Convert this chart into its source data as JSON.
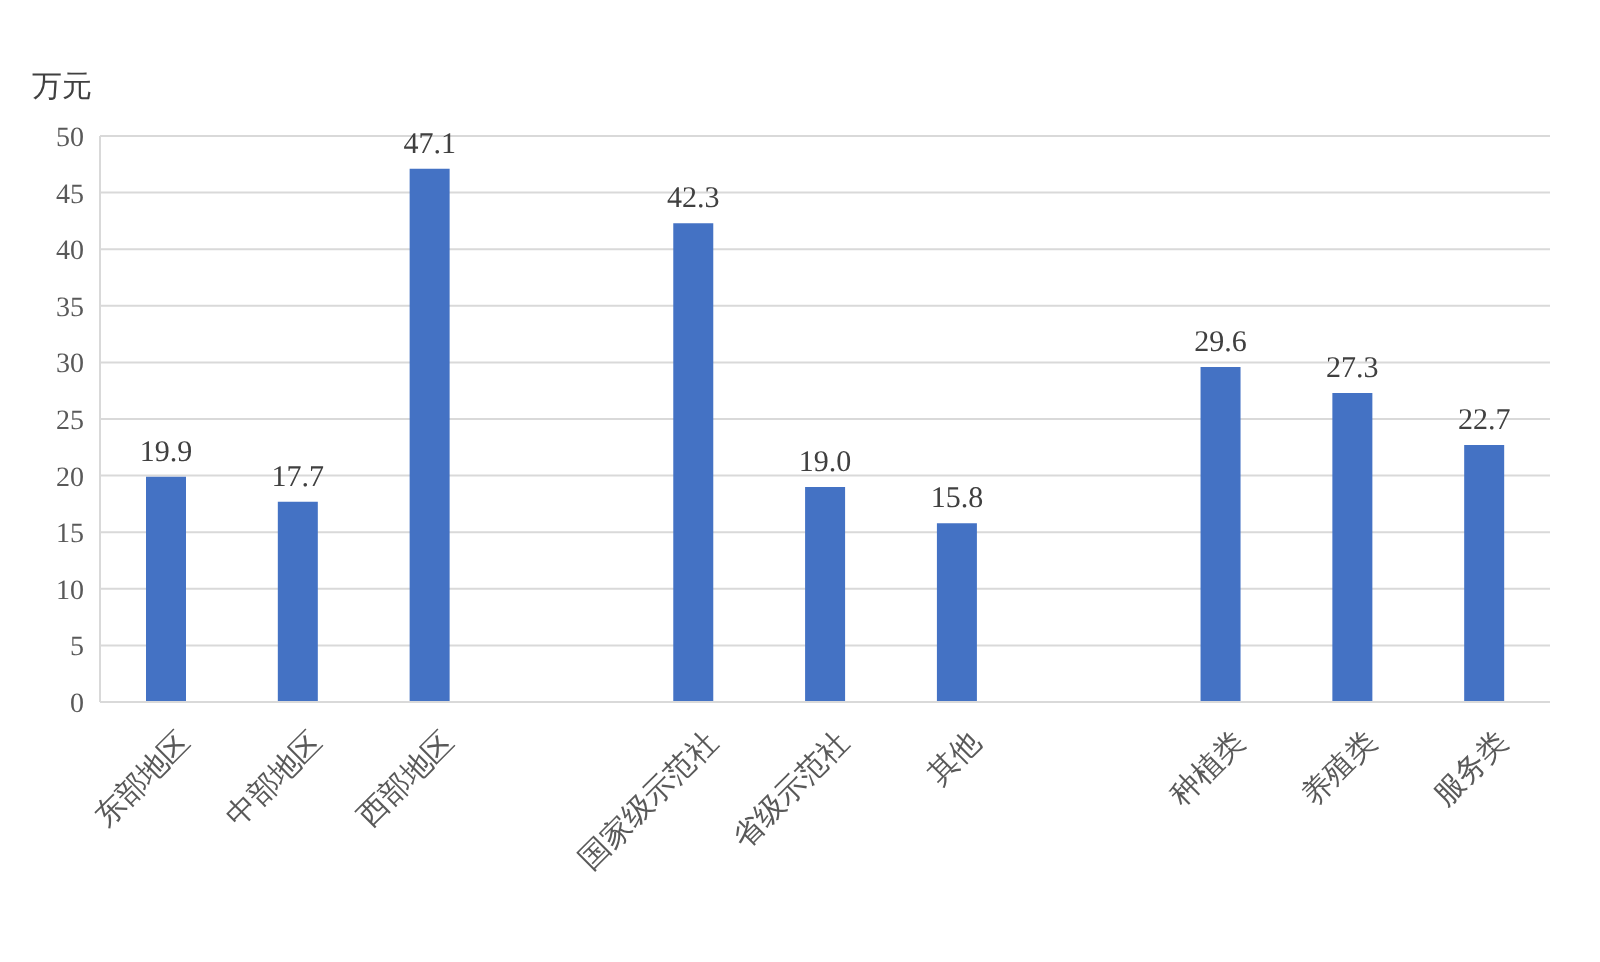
{
  "chart_data": {
    "type": "bar",
    "ylabel": "万元",
    "categories": [
      "东部地区",
      "中部地区",
      "西部地区",
      null,
      "国家级示范社",
      "省级示范社",
      "其他",
      null,
      "种植类",
      "养殖类",
      "服务类"
    ],
    "values": [
      19.9,
      17.7,
      47.1,
      null,
      42.3,
      19.0,
      15.8,
      null,
      29.6,
      27.3,
      22.7
    ],
    "value_labels": [
      "19.9",
      "17.7",
      "47.1",
      null,
      "42.3",
      "19.0",
      "15.8",
      null,
      "29.6",
      "27.3",
      "22.7"
    ],
    "color": "#4472c4",
    "ylim": [
      0,
      50
    ],
    "yticks": [
      0,
      5,
      10,
      15,
      20,
      25,
      30,
      35,
      40,
      45,
      50
    ],
    "grid": "y"
  }
}
